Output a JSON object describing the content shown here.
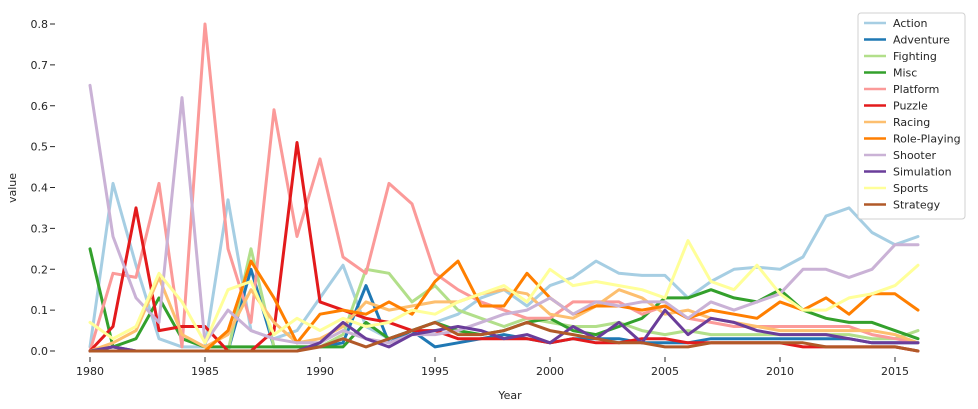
{
  "chart_data": {
    "type": "line",
    "title": "",
    "xlabel": "Year",
    "ylabel": "value",
    "xlim": [
      1980,
      2016
    ],
    "ylim": [
      0,
      0.8
    ],
    "xticks": [
      1980,
      1985,
      1990,
      1995,
      2000,
      2005,
      2010,
      2015
    ],
    "yticks": [
      "0.0",
      "0.1",
      "0.2",
      "0.3",
      "0.4",
      "0.5",
      "0.6",
      "0.7",
      "0.8"
    ],
    "grid": false,
    "legend_position": "top-right",
    "x": [
      1980,
      1981,
      1982,
      1983,
      1984,
      1985,
      1986,
      1987,
      1988,
      1989,
      1990,
      1991,
      1992,
      1993,
      1994,
      1995,
      1996,
      1997,
      1998,
      1999,
      2000,
      2001,
      2002,
      2003,
      2004,
      2005,
      2006,
      2007,
      2008,
      2009,
      2010,
      2011,
      2012,
      2013,
      2014,
      2015,
      2016
    ],
    "series": [
      {
        "name": "Action",
        "color": "#a6cee3",
        "values": [
          0.01,
          0.41,
          0.21,
          0.03,
          0.01,
          0.01,
          0.37,
          0.05,
          0.03,
          0.05,
          0.13,
          0.21,
          0.06,
          0.03,
          0.05,
          0.07,
          0.09,
          0.13,
          0.15,
          0.11,
          0.16,
          0.18,
          0.22,
          0.19,
          0.185,
          0.185,
          0.13,
          0.17,
          0.2,
          0.205,
          0.2,
          0.23,
          0.33,
          0.35,
          0.29,
          0.26,
          0.28
        ]
      },
      {
        "name": "Adventure",
        "color": "#1f78b4",
        "values": [
          0,
          0.01,
          0,
          0,
          0,
          0,
          0,
          0.2,
          0.01,
          0.01,
          0.01,
          0.02,
          0.16,
          0.02,
          0.05,
          0.01,
          0.02,
          0.03,
          0.04,
          0.03,
          0.02,
          0.03,
          0.03,
          0.03,
          0.02,
          0.02,
          0.02,
          0.03,
          0.03,
          0.03,
          0.03,
          0.03,
          0.03,
          0.03,
          0.02,
          0.02,
          0.02
        ]
      },
      {
        "name": "Fighting",
        "color": "#b2df8a",
        "values": [
          0,
          0,
          0,
          0,
          0,
          0,
          0,
          0.25,
          0.01,
          0.01,
          0.01,
          0.04,
          0.2,
          0.19,
          0.12,
          0.16,
          0.1,
          0.08,
          0.06,
          0.08,
          0.07,
          0.06,
          0.06,
          0.07,
          0.05,
          0.04,
          0.05,
          0.04,
          0.04,
          0.04,
          0.04,
          0.04,
          0.04,
          0.04,
          0.03,
          0.03,
          0.05
        ]
      },
      {
        "name": "Misc",
        "color": "#33a02c",
        "values": [
          0.25,
          0.01,
          0.03,
          0.13,
          0.03,
          0.01,
          0.01,
          0.01,
          0.01,
          0.01,
          0.01,
          0.01,
          0.07,
          0.03,
          0.05,
          0.07,
          0.05,
          0.04,
          0.05,
          0.07,
          0.08,
          0.05,
          0.04,
          0.06,
          0.08,
          0.13,
          0.13,
          0.15,
          0.13,
          0.12,
          0.15,
          0.1,
          0.08,
          0.07,
          0.07,
          0.05,
          0.03
        ]
      },
      {
        "name": "Platform",
        "color": "#fb9a99",
        "values": [
          0,
          0.19,
          0.18,
          0.41,
          0.01,
          0.8,
          0.25,
          0.07,
          0.59,
          0.28,
          0.47,
          0.23,
          0.19,
          0.41,
          0.36,
          0.19,
          0.15,
          0.12,
          0.1,
          0.08,
          0.08,
          0.12,
          0.12,
          0.12,
          0.09,
          0.11,
          0.08,
          0.07,
          0.06,
          0.06,
          0.06,
          0.06,
          0.06,
          0.06,
          0.04,
          0.03,
          0.02
        ]
      },
      {
        "name": "Puzzle",
        "color": "#e31a1c",
        "values": [
          0,
          0.06,
          0.35,
          0.05,
          0.06,
          0.06,
          0,
          0,
          0.05,
          0.51,
          0.12,
          0.1,
          0.08,
          0.07,
          0.05,
          0.05,
          0.03,
          0.03,
          0.03,
          0.03,
          0.02,
          0.03,
          0.02,
          0.02,
          0.03,
          0.03,
          0.02,
          0.02,
          0.02,
          0.02,
          0.02,
          0.01,
          0.01,
          0.01,
          0.01,
          0.01,
          0.0
        ]
      },
      {
        "name": "Racing",
        "color": "#fdbf6f",
        "values": [
          0,
          0.02,
          0.05,
          0.18,
          0.04,
          0.01,
          0.04,
          0.15,
          0.07,
          0.02,
          0.03,
          0.06,
          0.12,
          0.1,
          0.11,
          0.12,
          0.12,
          0.14,
          0.15,
          0.14,
          0.09,
          0.08,
          0.11,
          0.15,
          0.13,
          0.09,
          0.1,
          0.08,
          0.07,
          0.06,
          0.05,
          0.05,
          0.05,
          0.05,
          0.05,
          0.04,
          0.02
        ]
      },
      {
        "name": "Role-Playing",
        "color": "#ff7f00",
        "values": [
          0,
          0,
          0,
          0,
          0,
          0,
          0.05,
          0.22,
          0.13,
          0.02,
          0.09,
          0.1,
          0.09,
          0.12,
          0.09,
          0.17,
          0.22,
          0.11,
          0.11,
          0.19,
          0.13,
          0.09,
          0.11,
          0.11,
          0.1,
          0.11,
          0.08,
          0.1,
          0.09,
          0.08,
          0.12,
          0.1,
          0.13,
          0.09,
          0.14,
          0.14,
          0.1
        ]
      },
      {
        "name": "Shooter",
        "color": "#cab2d6",
        "values": [
          0.65,
          0.28,
          0.13,
          0.07,
          0.62,
          0.02,
          0.1,
          0.05,
          0.03,
          0.02,
          0.02,
          0.05,
          0.03,
          0.02,
          0.04,
          0.04,
          0.05,
          0.07,
          0.09,
          0.1,
          0.13,
          0.09,
          0.12,
          0.11,
          0.12,
          0.12,
          0.08,
          0.12,
          0.1,
          0.12,
          0.14,
          0.2,
          0.2,
          0.18,
          0.2,
          0.26,
          0.26
        ]
      },
      {
        "name": "Simulation",
        "color": "#6a3d9a",
        "values": [
          0,
          0.01,
          0,
          0,
          0,
          0,
          0,
          0,
          0,
          0,
          0.02,
          0.07,
          0.03,
          0.01,
          0.04,
          0.05,
          0.06,
          0.05,
          0.03,
          0.04,
          0.02,
          0.06,
          0.03,
          0.07,
          0.02,
          0.1,
          0.04,
          0.08,
          0.07,
          0.05,
          0.04,
          0.04,
          0.04,
          0.03,
          0.02,
          0.02,
          0.02
        ]
      },
      {
        "name": "Sports",
        "color": "#ffff99",
        "values": [
          0.07,
          0.03,
          0.06,
          0.19,
          0.12,
          0.02,
          0.15,
          0.17,
          0.04,
          0.08,
          0.05,
          0.08,
          0.06,
          0.07,
          0.1,
          0.09,
          0.12,
          0.14,
          0.16,
          0.12,
          0.2,
          0.16,
          0.17,
          0.16,
          0.15,
          0.13,
          0.27,
          0.17,
          0.15,
          0.21,
          0.14,
          0.1,
          0.1,
          0.13,
          0.14,
          0.16,
          0.21
        ]
      },
      {
        "name": "Strategy",
        "color": "#b15928",
        "values": [
          0,
          0,
          0,
          0,
          0,
          0,
          0,
          0,
          0,
          0,
          0.01,
          0.03,
          0.01,
          0.03,
          0.05,
          0.07,
          0.04,
          0.04,
          0.05,
          0.07,
          0.05,
          0.04,
          0.03,
          0.02,
          0.02,
          0.01,
          0.01,
          0.02,
          0.02,
          0.02,
          0.02,
          0.02,
          0.01,
          0.01,
          0.01,
          0.01,
          0.0
        ]
      }
    ]
  }
}
